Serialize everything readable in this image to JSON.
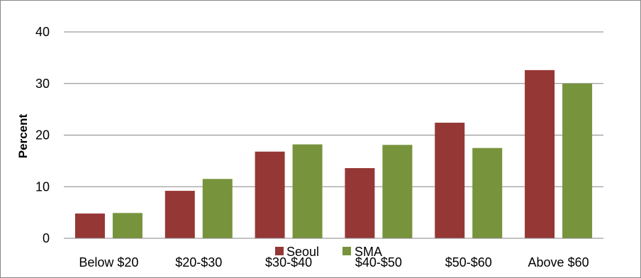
{
  "chart_data": {
    "type": "bar",
    "title": "",
    "xlabel": "",
    "ylabel": "Percent",
    "ylim": [
      0,
      40
    ],
    "yticks": [
      0,
      10,
      20,
      30,
      40
    ],
    "grid": true,
    "legend_position": "bottom",
    "categories": [
      "Below $20",
      "$20-$30",
      "$30-$40",
      "$40-$50",
      "$50-$60",
      "Above $60"
    ],
    "series": [
      {
        "name": "Seoul",
        "color": "#953735",
        "values": [
          4.8,
          9.2,
          16.8,
          13.6,
          22.4,
          32.6
        ]
      },
      {
        "name": "SMA",
        "color": "#77933C",
        "values": [
          4.9,
          11.5,
          18.2,
          18.1,
          17.5,
          30.0
        ]
      }
    ]
  }
}
